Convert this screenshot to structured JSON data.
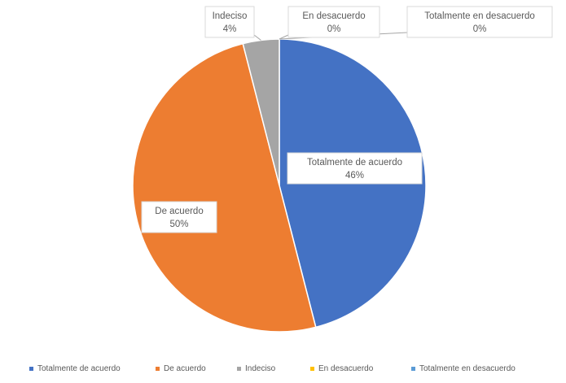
{
  "chart_data": {
    "type": "pie",
    "title": "",
    "categories": [
      "Totalmente de acuerdo",
      "De acuerdo",
      "Indeciso",
      "En desacuerdo",
      "Totalmente en desacuerdo"
    ],
    "values": [
      46,
      50,
      4,
      0,
      0
    ],
    "value_labels": [
      "46%",
      "50%",
      "4%",
      "0%",
      "0%"
    ],
    "colors": [
      "#4472C4",
      "#ED7D31",
      "#A5A5A5",
      "#FFC000",
      "#5B9BD5"
    ],
    "legend": {
      "position": "bottom",
      "entries": [
        "Totalmente de acuerdo",
        "De acuerdo",
        "Indeciso",
        "En desacuerdo",
        "Totalmente en desacuerdo"
      ]
    }
  }
}
